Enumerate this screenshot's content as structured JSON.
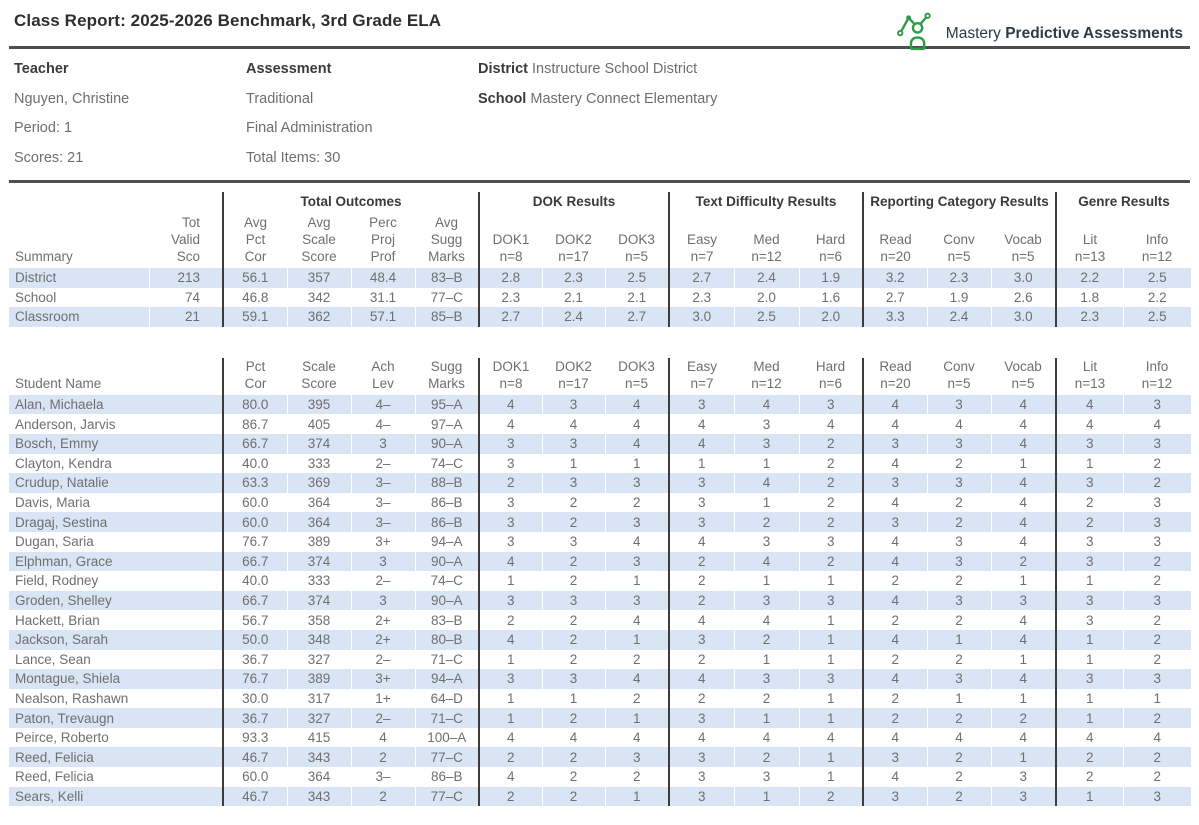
{
  "title": "Class Report: 2025-2026 Benchmark, 3rd Grade ELA",
  "brand": {
    "name_light": "Mastery",
    "name_bold": "Predictive Assessments",
    "logo_color": "#2E9D49",
    "text_color": "#2D3B45"
  },
  "colors": {
    "row_stripe": "#D9E4F5",
    "rule": "#4F4F4F",
    "divider": "#3C3C3C",
    "text_gray": "#6F6F6F",
    "text_dark": "#3B3B3B"
  },
  "info": {
    "teacher_label": "Teacher",
    "teacher_name": "Nguyen, Christine",
    "period": "Period: 1",
    "scores": "Scores: 21",
    "assessment_label": "Assessment",
    "assessment_type": "Traditional",
    "administration": "Final Administration",
    "total_items": "Total Items: 30",
    "district_label": "District",
    "district_value": "Instructure School District",
    "school_label": "School",
    "school_value": "Mastery Connect Elementary"
  },
  "summary_table": {
    "groups": [
      "Total Outcomes",
      "DOK Results",
      "Text Difficulty Results",
      "Reporting Category Results",
      "Genre Results"
    ],
    "row_header_label": "Summary",
    "columns": [
      "Tot\nValid\nSco",
      "Avg\nPct\nCor",
      "Avg\nScale\nScore",
      "Perc\nProj\nProf",
      "Avg\nSugg\nMarks",
      "DOK1\nn=8",
      "DOK2\nn=17",
      "DOK3\nn=5",
      "Easy\nn=7",
      "Med\nn=12",
      "Hard\nn=6",
      "Read\nn=20",
      "Conv\nn=5",
      "Vocab\nn=5",
      "Lit\nn=13",
      "Info\nn=12"
    ],
    "rows": [
      {
        "label": "District",
        "values": [
          "213",
          "56.1",
          "357",
          "48.4",
          "83–B",
          "2.8",
          "2.3",
          "2.5",
          "2.7",
          "2.4",
          "1.9",
          "3.2",
          "2.3",
          "3.0",
          "2.2",
          "2.5"
        ]
      },
      {
        "label": "School",
        "values": [
          "74",
          "46.8",
          "342",
          "31.1",
          "77–C",
          "2.3",
          "2.1",
          "2.1",
          "2.3",
          "2.0",
          "1.6",
          "2.7",
          "1.9",
          "2.6",
          "1.8",
          "2.2"
        ]
      },
      {
        "label": "Classroom",
        "values": [
          "21",
          "59.1",
          "362",
          "57.1",
          "85–B",
          "2.7",
          "2.4",
          "2.7",
          "3.0",
          "2.5",
          "2.0",
          "3.3",
          "2.4",
          "3.0",
          "2.3",
          "2.5"
        ]
      }
    ]
  },
  "student_table": {
    "row_header_label": "Student Name",
    "columns": [
      "Pct\nCor",
      "Scale\nScore",
      "Ach\nLev",
      "Sugg\nMarks",
      "DOK1\nn=8",
      "DOK2\nn=17",
      "DOK3\nn=5",
      "Easy\nn=7",
      "Med\nn=12",
      "Hard\nn=6",
      "Read\nn=20",
      "Conv\nn=5",
      "Vocab\nn=5",
      "Lit\nn=13",
      "Info\nn=12"
    ],
    "rows": [
      {
        "label": "Alan, Michaela",
        "values": [
          "80.0",
          "395",
          "4–",
          "95–A",
          "4",
          "3",
          "4",
          "3",
          "4",
          "3",
          "4",
          "3",
          "4",
          "4",
          "3"
        ]
      },
      {
        "label": "Anderson, Jarvis",
        "values": [
          "86.7",
          "405",
          "4–",
          "97–A",
          "4",
          "4",
          "4",
          "4",
          "3",
          "4",
          "4",
          "4",
          "4",
          "4",
          "4"
        ]
      },
      {
        "label": "Bosch, Emmy",
        "values": [
          "66.7",
          "374",
          "3",
          "90–A",
          "3",
          "3",
          "4",
          "4",
          "3",
          "2",
          "3",
          "3",
          "4",
          "3",
          "3"
        ]
      },
      {
        "label": "Clayton, Kendra",
        "values": [
          "40.0",
          "333",
          "2–",
          "74–C",
          "3",
          "1",
          "1",
          "1",
          "1",
          "2",
          "4",
          "2",
          "1",
          "1",
          "2"
        ]
      },
      {
        "label": "Crudup, Natalie",
        "values": [
          "63.3",
          "369",
          "3–",
          "88–B",
          "2",
          "3",
          "3",
          "3",
          "4",
          "2",
          "3",
          "3",
          "4",
          "3",
          "2"
        ]
      },
      {
        "label": "Davis, Maria",
        "values": [
          "60.0",
          "364",
          "3–",
          "86–B",
          "3",
          "2",
          "2",
          "3",
          "1",
          "2",
          "4",
          "2",
          "4",
          "2",
          "3"
        ]
      },
      {
        "label": "Dragaj, Sestina",
        "values": [
          "60.0",
          "364",
          "3–",
          "86–B",
          "3",
          "2",
          "3",
          "3",
          "2",
          "2",
          "3",
          "2",
          "4",
          "2",
          "3"
        ]
      },
      {
        "label": "Dugan, Saria",
        "values": [
          "76.7",
          "389",
          "3+",
          "94–A",
          "3",
          "3",
          "4",
          "4",
          "3",
          "3",
          "4",
          "3",
          "4",
          "3",
          "3"
        ]
      },
      {
        "label": "Elphman, Grace",
        "values": [
          "66.7",
          "374",
          "3",
          "90–A",
          "4",
          "2",
          "3",
          "2",
          "4",
          "2",
          "4",
          "3",
          "2",
          "3",
          "2"
        ]
      },
      {
        "label": "Field, Rodney",
        "values": [
          "40.0",
          "333",
          "2–",
          "74–C",
          "1",
          "2",
          "1",
          "2",
          "1",
          "1",
          "2",
          "2",
          "1",
          "1",
          "2"
        ]
      },
      {
        "label": "Groden, Shelley",
        "values": [
          "66.7",
          "374",
          "3",
          "90–A",
          "3",
          "3",
          "3",
          "2",
          "3",
          "3",
          "4",
          "3",
          "3",
          "3",
          "3"
        ]
      },
      {
        "label": "Hackett, Brian",
        "values": [
          "56.7",
          "358",
          "2+",
          "83–B",
          "2",
          "2",
          "4",
          "4",
          "4",
          "1",
          "2",
          "2",
          "4",
          "3",
          "2"
        ]
      },
      {
        "label": "Jackson, Sarah",
        "values": [
          "50.0",
          "348",
          "2+",
          "80–B",
          "4",
          "2",
          "1",
          "3",
          "2",
          "1",
          "4",
          "1",
          "4",
          "1",
          "2"
        ]
      },
      {
        "label": "Lance, Sean",
        "values": [
          "36.7",
          "327",
          "2–",
          "71–C",
          "1",
          "2",
          "2",
          "2",
          "1",
          "1",
          "2",
          "2",
          "1",
          "1",
          "2"
        ]
      },
      {
        "label": "Montague, Shiela",
        "values": [
          "76.7",
          "389",
          "3+",
          "94–A",
          "3",
          "3",
          "4",
          "4",
          "3",
          "3",
          "4",
          "3",
          "4",
          "3",
          "3"
        ]
      },
      {
        "label": "Nealson, Rashawn",
        "values": [
          "30.0",
          "317",
          "1+",
          "64–D",
          "1",
          "1",
          "2",
          "2",
          "2",
          "1",
          "2",
          "1",
          "1",
          "1",
          "1"
        ]
      },
      {
        "label": "Paton, Trevaugn",
        "values": [
          "36.7",
          "327",
          "2–",
          "71–C",
          "1",
          "2",
          "1",
          "3",
          "1",
          "1",
          "2",
          "2",
          "2",
          "1",
          "2"
        ]
      },
      {
        "label": "Peirce, Roberto",
        "values": [
          "93.3",
          "415",
          "4",
          "100–A",
          "4",
          "4",
          "4",
          "4",
          "4",
          "4",
          "4",
          "4",
          "4",
          "4",
          "4"
        ]
      },
      {
        "label": "Reed, Felicia",
        "values": [
          "46.7",
          "343",
          "2",
          "77–C",
          "2",
          "2",
          "3",
          "3",
          "2",
          "1",
          "3",
          "2",
          "1",
          "2",
          "2"
        ]
      },
      {
        "label": "Reed, Felicia",
        "values": [
          "60.0",
          "364",
          "3–",
          "86–B",
          "4",
          "2",
          "2",
          "3",
          "3",
          "1",
          "4",
          "2",
          "3",
          "2",
          "2"
        ]
      },
      {
        "label": "Sears, Kelli",
        "values": [
          "46.7",
          "343",
          "2",
          "77–C",
          "2",
          "2",
          "1",
          "3",
          "1",
          "2",
          "3",
          "2",
          "3",
          "1",
          "3"
        ]
      }
    ]
  }
}
